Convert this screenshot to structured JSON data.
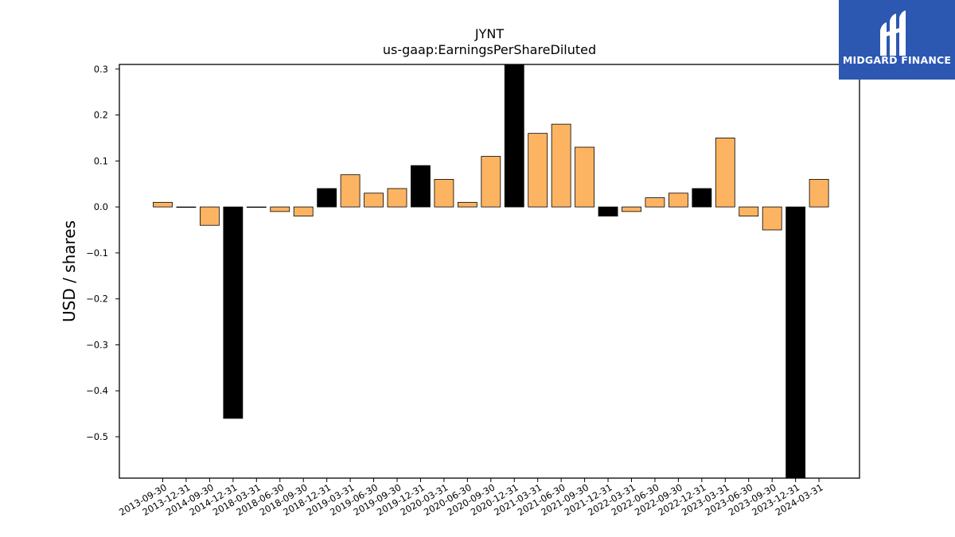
{
  "colors": {
    "bar_default": "#fdb462",
    "bar_highlight": "#000000",
    "logo_bg": "#2c58b2"
  },
  "logo": {
    "text": "MIDGARD FINANCE",
    "icon": "midgard-logo-icon"
  },
  "chart_data": {
    "type": "bar",
    "title": "JYNT",
    "subtitle": "us-gaap:EarningsPerShareDiluted",
    "xlabel": "",
    "ylabel": "USD / shares",
    "ylim": [
      -0.59,
      0.31
    ],
    "yticks": [
      0.3,
      0.2,
      0.1,
      0.0,
      -0.1,
      -0.2,
      -0.3,
      -0.4,
      -0.5
    ],
    "ytick_labels": [
      "0.3",
      "0.2",
      "0.1",
      "0.0",
      "−0.1",
      "−0.2",
      "−0.3",
      "−0.4",
      "−0.5"
    ],
    "grid": false,
    "categories": [
      "2013-09-30",
      "2013-12-31",
      "2014-09-30",
      "2014-12-31",
      "2018-03-31",
      "2018-06-30",
      "2018-09-30",
      "2018-12-31",
      "2019-03-31",
      "2019-06-30",
      "2019-09-30",
      "2019-12-31",
      "2020-03-31",
      "2020-06-30",
      "2020-09-30",
      "2020-12-31",
      "2021-03-31",
      "2021-06-30",
      "2021-09-30",
      "2021-12-31",
      "2022-03-31",
      "2022-06-30",
      "2022-09-30",
      "2022-12-31",
      "2023-03-31",
      "2023-06-30",
      "2023-09-30",
      "2023-12-31",
      "2024-03-31"
    ],
    "values": [
      0.01,
      0.0,
      -0.04,
      -0.46,
      0.0,
      -0.01,
      -0.02,
      0.04,
      0.07,
      0.03,
      0.04,
      0.09,
      0.06,
      0.01,
      0.11,
      0.31,
      0.16,
      0.18,
      0.13,
      -0.02,
      -0.01,
      0.02,
      0.03,
      0.04,
      0.15,
      -0.02,
      -0.05,
      -0.59,
      0.06
    ],
    "highlighted": [
      false,
      false,
      false,
      true,
      false,
      false,
      false,
      true,
      false,
      false,
      false,
      true,
      false,
      false,
      false,
      true,
      false,
      false,
      false,
      true,
      false,
      false,
      false,
      true,
      false,
      false,
      false,
      true,
      false
    ]
  }
}
